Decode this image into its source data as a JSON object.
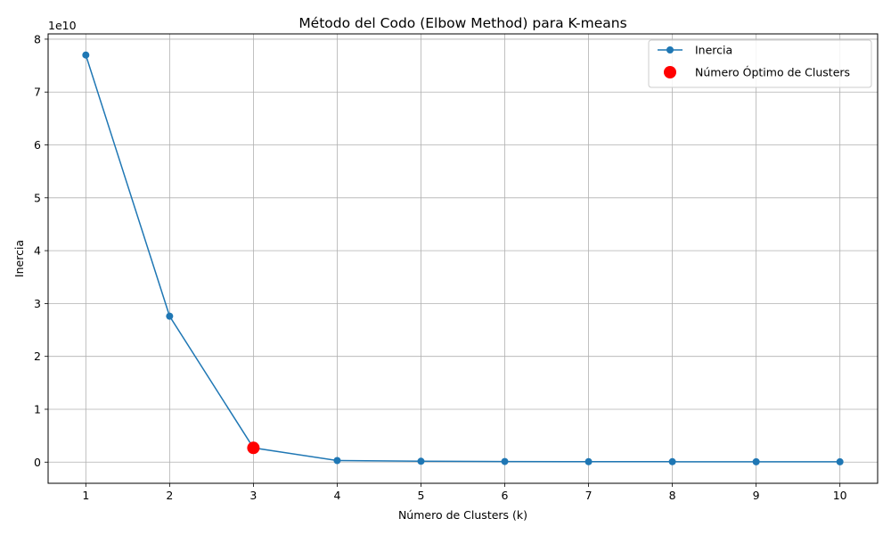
{
  "chart_data": {
    "type": "line",
    "title": "Método del Codo (Elbow Method) para K-means",
    "xlabel": "Número de Clusters (k)",
    "ylabel": "Inercia",
    "y_offset_label": "1e10",
    "y_scale": 10000000000,
    "x_ticks": [
      1,
      2,
      3,
      4,
      5,
      6,
      7,
      8,
      9,
      10
    ],
    "y_ticks": [
      0,
      1,
      2,
      3,
      4,
      5,
      6,
      7,
      8
    ],
    "xlim": [
      0.55,
      10.45
    ],
    "ylim": [
      -0.4,
      8.1
    ],
    "grid": true,
    "legend_position": "top-right",
    "series": [
      {
        "name": "Inercia",
        "color": "#1f77b4",
        "marker": "circle",
        "x": [
          1,
          2,
          3,
          4,
          5,
          6,
          7,
          8,
          9,
          10
        ],
        "y": [
          77000000000,
          27600000000,
          2700000000,
          300000000,
          170000000,
          120000000,
          90000000,
          80000000,
          70000000,
          60000000
        ]
      }
    ],
    "highlight": {
      "name": "Número Óptimo de Clusters",
      "color": "#ff0000",
      "x": 3,
      "y": 2700000000
    }
  }
}
